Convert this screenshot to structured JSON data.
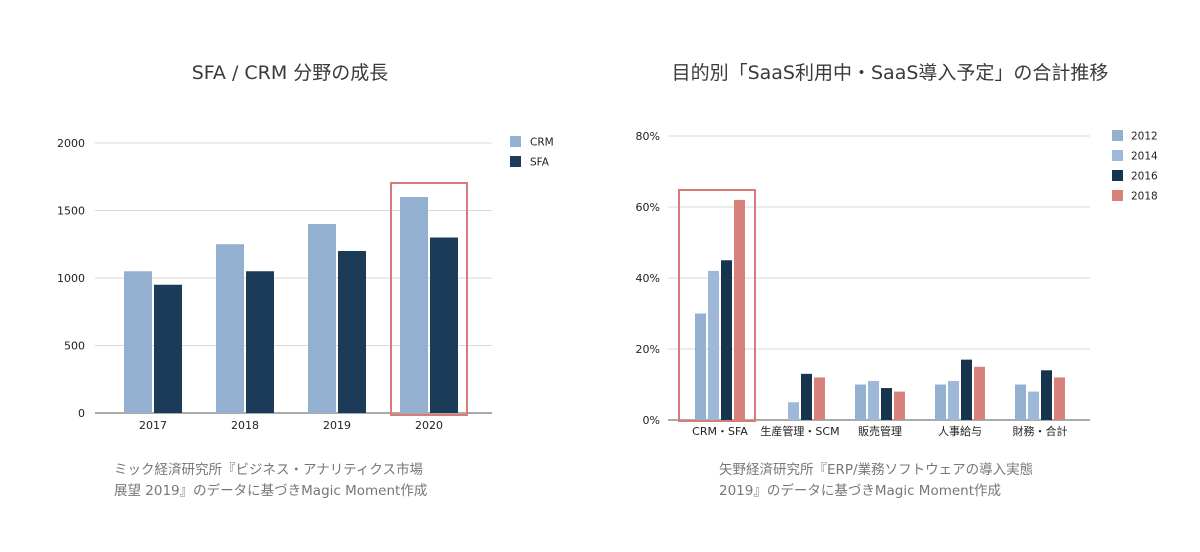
{
  "titles": {
    "left": "SFA / CRM 分野の成長",
    "right": "目的別「SaaS利用中・SaaS導入予定」の合計推移"
  },
  "sources": {
    "left": "ミック経済研究所『ビジネス・アナリティクス市場展望 2019』のデータに基づきMagic Moment作成",
    "right": "矢野経済研究所『ERP/業務ソフトウェアの導入実態 2019』のデータに基づきMagic Moment作成"
  },
  "colors": {
    "crm": "#93b0d0",
    "sfa": "#1b3b58",
    "y2012": "#93b0d0",
    "y2014": "#9db8d8",
    "y2016": "#17344f",
    "y2018": "#d9817b",
    "highlight": "#d77b76",
    "grid": "#d9d9d9"
  },
  "chart_data": [
    {
      "type": "bar",
      "title": "SFA / CRM 分野の成長",
      "categories": [
        "2017",
        "2018",
        "2019",
        "2020"
      ],
      "series": [
        {
          "name": "CRM",
          "values": [
            1050,
            1250,
            1400,
            1600
          ]
        },
        {
          "name": "SFA",
          "values": [
            950,
            1050,
            1200,
            1300
          ]
        }
      ],
      "ylim": [
        0,
        2000
      ],
      "yticks": [
        "0",
        "500",
        "1000",
        "1500",
        "2000"
      ],
      "grid": true,
      "legend": "right",
      "highlight_category": "2020"
    },
    {
      "type": "bar",
      "title": "目的別「SaaS利用中・SaaS導入予定」の合計推移",
      "categories": [
        "CRM・SFA",
        "生産管理・SCM",
        "販売管理",
        "人事給与",
        "財務・合計"
      ],
      "series": [
        {
          "name": "2012",
          "values": [
            30,
            null,
            10,
            10,
            10
          ]
        },
        {
          "name": "2014",
          "values": [
            42,
            5,
            11,
            11,
            8
          ]
        },
        {
          "name": "2016",
          "values": [
            45,
            13,
            9,
            17,
            14
          ]
        },
        {
          "name": "2018",
          "values": [
            62,
            12,
            8,
            15,
            12
          ]
        }
      ],
      "ylim": [
        0,
        80
      ],
      "yticks": [
        "0%",
        "20%",
        "40%",
        "60%",
        "80%"
      ],
      "grid": true,
      "legend": "right",
      "highlight_category": "CRM・SFA"
    }
  ]
}
